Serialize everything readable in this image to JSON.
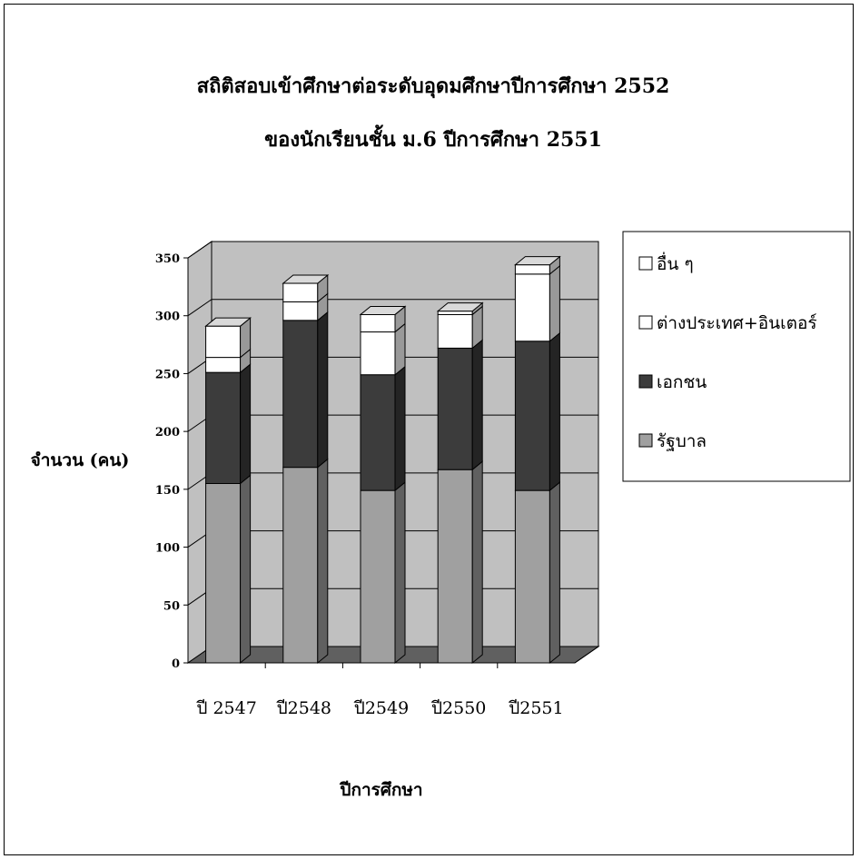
{
  "chart_data": {
    "type": "bar",
    "stacked": true,
    "three_d": true,
    "title_lines": [
      "สถิติสอบเข้าศึกษาต่อระดับอุดมศึกษาปีการศึกษา 2552",
      "ของนักเรียนชั้น ม.6 ปีการศึกษา 2551"
    ],
    "xlabel": "ปีการศึกษา",
    "ylabel": "จำนวน (คน)",
    "ylim": [
      0,
      350
    ],
    "yticks": [
      0,
      50,
      100,
      150,
      200,
      250,
      300,
      350
    ],
    "grid": true,
    "legend_position": "right",
    "categories": [
      "ปี 2547",
      "ปี2548",
      "ปี2549",
      "ปี2550",
      "ปี2551"
    ],
    "series": [
      {
        "name": "รัฐบาล",
        "values": [
          155,
          169,
          149,
          167,
          149
        ],
        "color": "#a0a0a0"
      },
      {
        "name": "เอกชน",
        "values": [
          96,
          127,
          100,
          105,
          129
        ],
        "color": "#3c3c3c"
      },
      {
        "name": "ต่างประเทศ+อินเตอร์",
        "values": [
          13,
          16,
          37,
          29,
          58
        ],
        "color": "#ffffff"
      },
      {
        "name": "อื่น ๆ",
        "values": [
          27,
          16,
          15,
          3,
          8
        ],
        "color": "#ffffff"
      }
    ],
    "colors": {
      "back_wall": "#c0c0c0",
      "floor": "#606060",
      "side_wall": "#c0c0c0"
    }
  }
}
